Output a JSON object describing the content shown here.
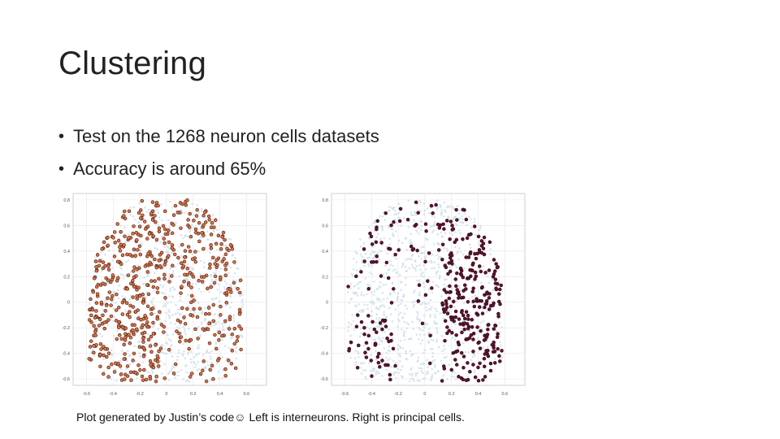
{
  "slide": {
    "title": "Clustering",
    "bullets": [
      "Test on the 1268 neuron cells datasets",
      "Accuracy is around 65%"
    ],
    "caption": "Plot generated by Justin’s code☺ Left is interneurons. Right is principal cells."
  },
  "colors": {
    "background_points": "#c9dcec",
    "interneuron": "#d9764a",
    "interneuron_edge": "#5a2414",
    "principal": "#5c1530",
    "principal_edge": "#3a0a1c",
    "grid": "#e6e6e6"
  },
  "chart_data": [
    {
      "type": "scatter",
      "title": "",
      "xlabel": "",
      "ylabel": "",
      "xlim": [
        -0.7,
        0.75
      ],
      "ylim": [
        -0.65,
        0.85
      ],
      "grid": true,
      "x_ticks": [
        "-0.6",
        "-0.4",
        "-0.2",
        "0",
        "0.2",
        "0.4",
        "0.6"
      ],
      "y_ticks": [
        "0.8",
        "0.6",
        "0.4",
        "0.2",
        "0",
        "-0.2",
        "-0.4",
        "-0.6"
      ],
      "highlight": "interneurons"
    },
    {
      "type": "scatter",
      "title": "",
      "xlabel": "",
      "ylabel": "",
      "xlim": [
        -0.7,
        0.75
      ],
      "ylim": [
        -0.65,
        0.85
      ],
      "grid": true,
      "x_ticks": [
        "-0.6",
        "-0.4",
        "-0.2",
        "0",
        "0.2",
        "0.4",
        "0.6"
      ],
      "y_ticks": [
        "0.8",
        "0.6",
        "0.4",
        "0.2",
        "0",
        "-0.2",
        "-0.4",
        "-0.6"
      ],
      "highlight": "principal cells"
    }
  ]
}
